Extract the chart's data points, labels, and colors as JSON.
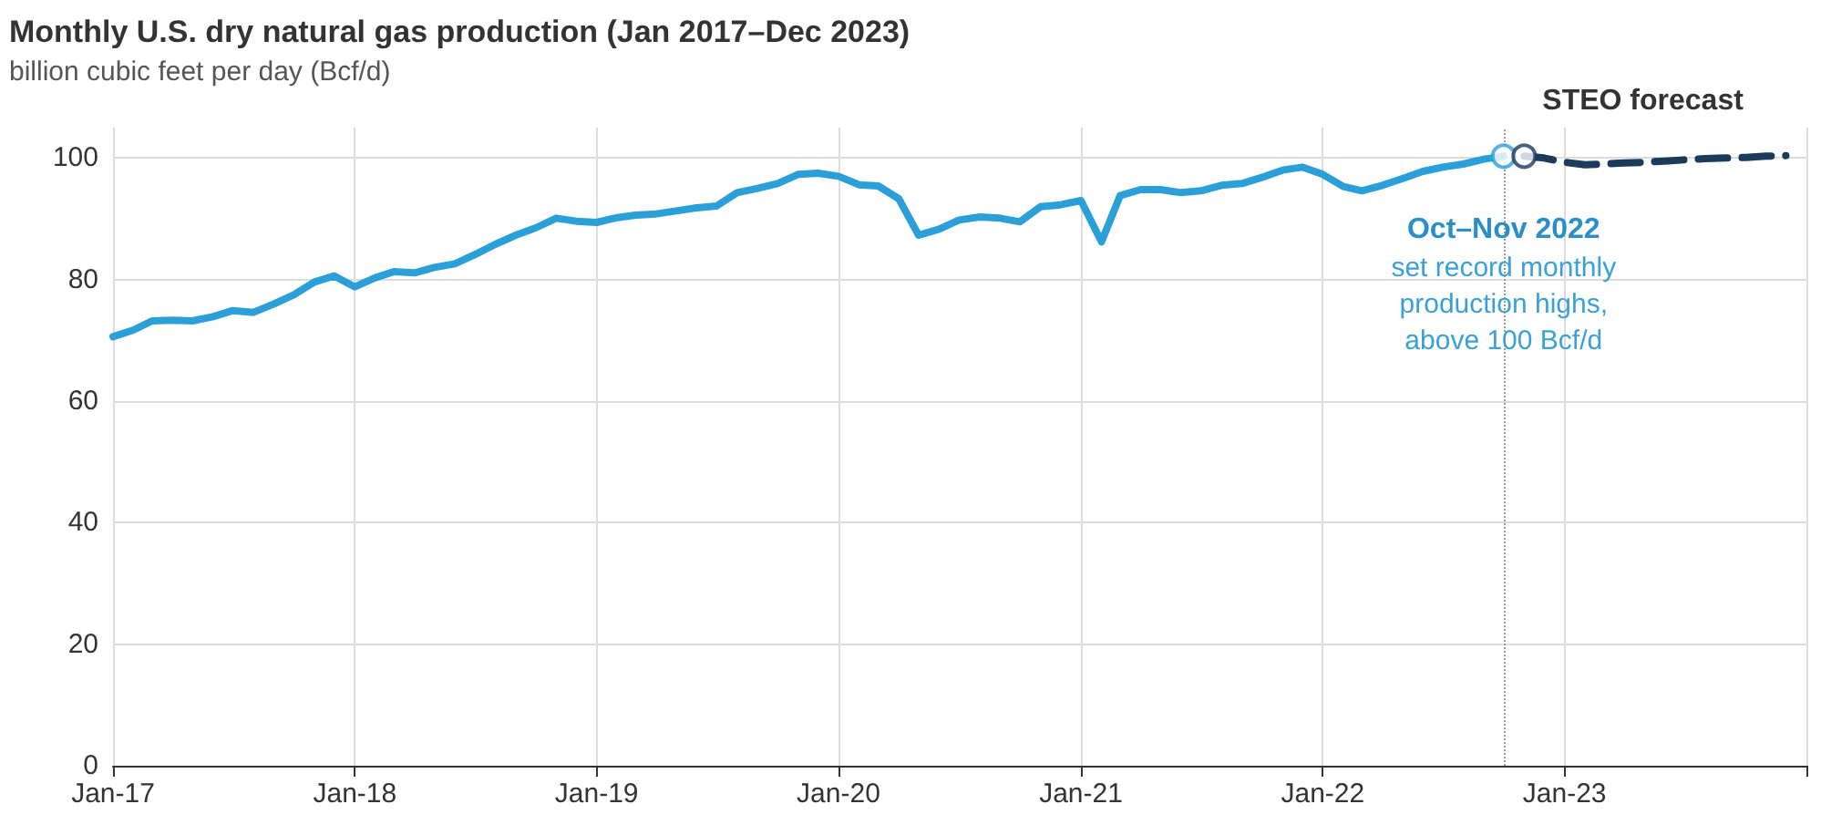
{
  "chart_data": {
    "type": "line",
    "title": "Monthly U.S. dry natural gas production (Jan 2017–Dec 2023)",
    "ylabel": "billion cubic feet per day (Bcf/d)",
    "series": [
      {
        "color": "#2a9fd8",
        "line_style": "solid",
        "marker": "none",
        "x": [
          "2017-01",
          "2017-02",
          "2017-03",
          "2017-04",
          "2017-05",
          "2017-06",
          "2017-07",
          "2017-08",
          "2017-09",
          "2017-10",
          "2017-11",
          "2017-12",
          "2018-01",
          "2018-02",
          "2018-03",
          "2018-04",
          "2018-05",
          "2018-06",
          "2018-07",
          "2018-08",
          "2018-09",
          "2018-10",
          "2018-11",
          "2018-12",
          "2019-01",
          "2019-02",
          "2019-03",
          "2019-04",
          "2019-05",
          "2019-06",
          "2019-07",
          "2019-08",
          "2019-09",
          "2019-10",
          "2019-11",
          "2019-12",
          "2020-01",
          "2020-02",
          "2020-03",
          "2020-04",
          "2020-05",
          "2020-06",
          "2020-07",
          "2020-08",
          "2020-09",
          "2020-10",
          "2020-11",
          "2020-12",
          "2021-01",
          "2021-02",
          "2021-03",
          "2021-04",
          "2021-05",
          "2021-06",
          "2021-07",
          "2021-08",
          "2021-09",
          "2021-10",
          "2021-11",
          "2021-12",
          "2022-01",
          "2022-02",
          "2022-03",
          "2022-04",
          "2022-05",
          "2022-06",
          "2022-07",
          "2022-08",
          "2022-09",
          "2022-10"
        ],
        "values": [
          70.6,
          71.7,
          73.2,
          73.3,
          73.2,
          73.9,
          74.9,
          74.6,
          76.0,
          77.5,
          79.6,
          80.6,
          78.8,
          80.3,
          81.3,
          81.1,
          82.0,
          82.6,
          84.1,
          85.8,
          87.3,
          88.5,
          90.1,
          89.6,
          89.4,
          90.2,
          90.6,
          90.8,
          91.3,
          91.8,
          92.1,
          94.3,
          95.0,
          95.8,
          97.3,
          97.5,
          97.0,
          95.6,
          95.4,
          93.3,
          87.3,
          88.3,
          89.8,
          90.3,
          90.1,
          89.5,
          92.0,
          92.3,
          93.0,
          86.2,
          93.8,
          94.8,
          94.8,
          94.3,
          94.6,
          95.5,
          95.8,
          96.8,
          98.0,
          98.5,
          97.3,
          95.3,
          94.6,
          95.5,
          96.6,
          97.8,
          98.5,
          99.0,
          99.8,
          100.3
        ]
      },
      {
        "name": "STEO forecast",
        "color": "#1b3a5c",
        "line_style": "dashed",
        "marker": "none",
        "x": [
          "2022-11",
          "2022-12",
          "2023-01",
          "2023-02",
          "2023-03",
          "2023-04",
          "2023-05",
          "2023-06",
          "2023-07",
          "2023-08",
          "2023-09",
          "2023-10",
          "2023-11",
          "2023-12"
        ],
        "values": [
          100.3,
          100.0,
          99.3,
          98.9,
          99.0,
          99.2,
          99.3,
          99.5,
          99.7,
          99.9,
          100.0,
          100.1,
          100.3,
          100.4
        ]
      },
      {
        "type": "scatter",
        "marker": "circle",
        "x": [
          "2022-10",
          "2022-11"
        ],
        "values": [
          100.3,
          100.3
        ],
        "colors": [
          "#2a9fd8",
          "#1b3a5c"
        ]
      }
    ],
    "xlim": [
      "2017-01",
      "2024-01"
    ],
    "xticks": [
      {
        "value": "2017-01",
        "label": "Jan-17"
      },
      {
        "value": "2018-01",
        "label": "Jan-18"
      },
      {
        "value": "2019-01",
        "label": "Jan-19"
      },
      {
        "value": "2020-01",
        "label": "Jan-20"
      },
      {
        "value": "2021-01",
        "label": "Jan-21"
      },
      {
        "value": "2022-01",
        "label": "Jan-22"
      },
      {
        "value": "2023-01",
        "label": "Jan-23"
      },
      {
        "value": "2024-01",
        "label": null
      }
    ],
    "ylim": [
      0,
      105
    ],
    "yticks": [
      0,
      20,
      40,
      60,
      80,
      100
    ],
    "grid": true,
    "legend": false,
    "ref_lines": [
      {
        "axis": "x",
        "value": "2022-10",
        "color": "#999999",
        "line_style": "dotted"
      }
    ],
    "annotations": [
      "Oct–Nov 2022\nset record monthly\nproduction highs,\nabove 100 Bcf/d"
    ]
  }
}
